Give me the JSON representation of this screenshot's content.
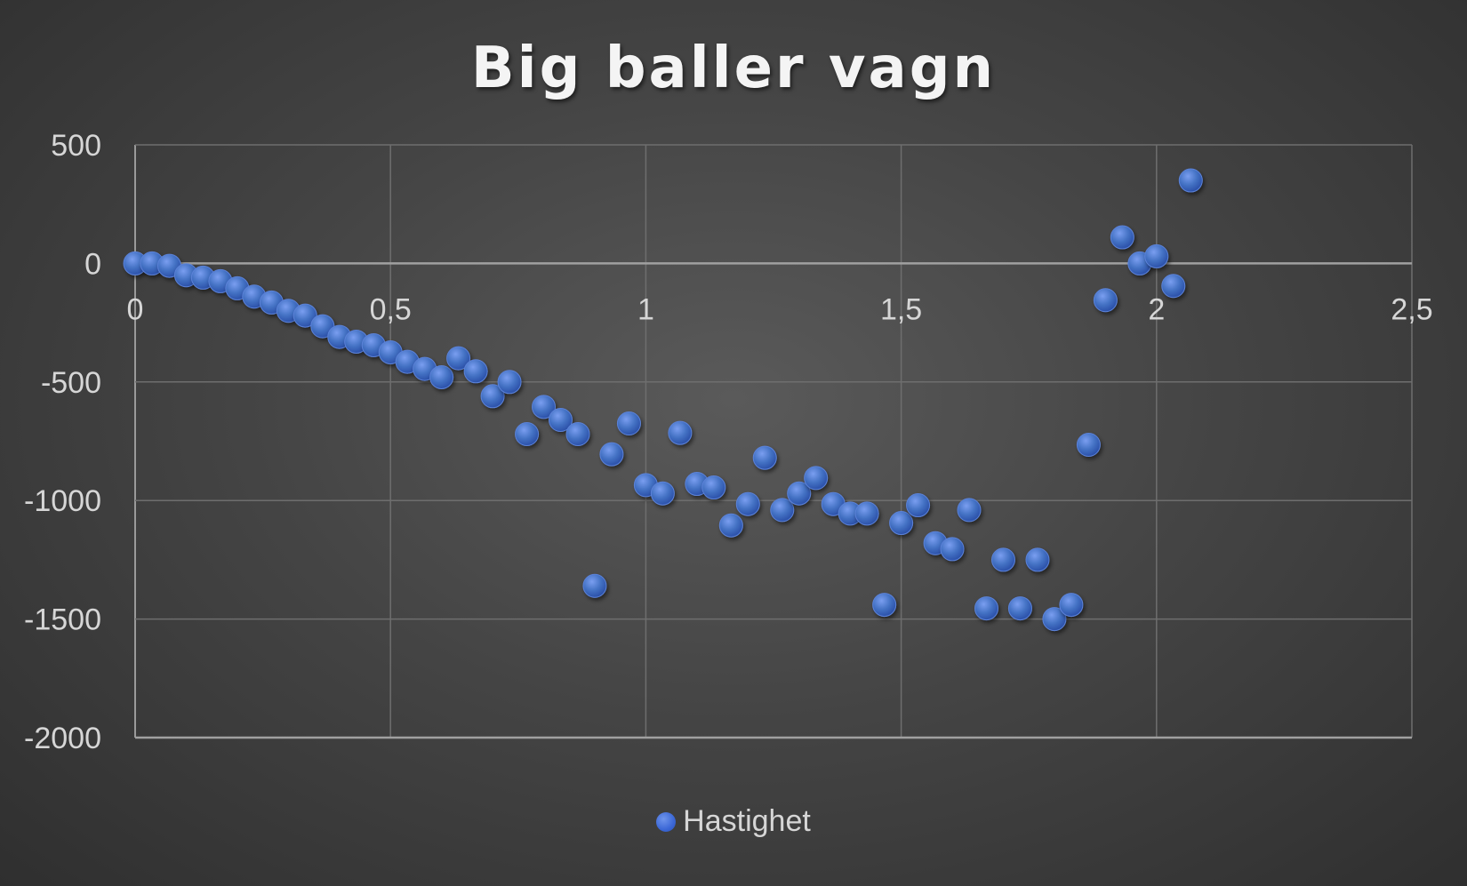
{
  "chart_data": {
    "type": "scatter",
    "title": "Big baller vagn",
    "xlim": [
      0,
      2.5
    ],
    "ylim": [
      -2000,
      500
    ],
    "x_ticks": [
      0,
      0.5,
      1,
      1.5,
      2,
      2.5
    ],
    "x_tick_labels": [
      "0",
      "0,5",
      "1",
      "1,5",
      "2",
      "2,5"
    ],
    "y_ticks": [
      500,
      0,
      -500,
      -1000,
      -1500,
      -2000
    ],
    "y_tick_labels": [
      "500",
      "0",
      "-500",
      "-1000",
      "-1500",
      "-2000"
    ],
    "grid": true,
    "legend_position": "bottom",
    "marker_color": "#4472C4",
    "series": [
      {
        "name": "Hastighet",
        "points": [
          [
            0.0,
            0
          ],
          [
            0.033,
            0
          ],
          [
            0.067,
            -10
          ],
          [
            0.1,
            -50
          ],
          [
            0.133,
            -60
          ],
          [
            0.167,
            -75
          ],
          [
            0.2,
            -105
          ],
          [
            0.233,
            -140
          ],
          [
            0.267,
            -165
          ],
          [
            0.3,
            -200
          ],
          [
            0.333,
            -220
          ],
          [
            0.367,
            -265
          ],
          [
            0.4,
            -310
          ],
          [
            0.433,
            -330
          ],
          [
            0.467,
            -345
          ],
          [
            0.5,
            -375
          ],
          [
            0.533,
            -415
          ],
          [
            0.567,
            -445
          ],
          [
            0.6,
            -480
          ],
          [
            0.633,
            -400
          ],
          [
            0.667,
            -455
          ],
          [
            0.7,
            -560
          ],
          [
            0.733,
            -500
          ],
          [
            0.767,
            -720
          ],
          [
            0.8,
            -605
          ],
          [
            0.833,
            -660
          ],
          [
            0.867,
            -720
          ],
          [
            0.9,
            -1360
          ],
          [
            0.933,
            -805
          ],
          [
            0.967,
            -675
          ],
          [
            1.0,
            -935
          ],
          [
            1.033,
            -970
          ],
          [
            1.067,
            -715
          ],
          [
            1.1,
            -930
          ],
          [
            1.133,
            -945
          ],
          [
            1.167,
            -1105
          ],
          [
            1.2,
            -1015
          ],
          [
            1.233,
            -820
          ],
          [
            1.267,
            -1040
          ],
          [
            1.3,
            -970
          ],
          [
            1.333,
            -905
          ],
          [
            1.367,
            -1015
          ],
          [
            1.4,
            -1055
          ],
          [
            1.433,
            -1055
          ],
          [
            1.467,
            -1440
          ],
          [
            1.5,
            -1095
          ],
          [
            1.533,
            -1020
          ],
          [
            1.567,
            -1180
          ],
          [
            1.6,
            -1205
          ],
          [
            1.633,
            -1040
          ],
          [
            1.667,
            -1455
          ],
          [
            1.7,
            -1250
          ],
          [
            1.733,
            -1455
          ],
          [
            1.767,
            -1250
          ],
          [
            1.8,
            -1500
          ],
          [
            1.833,
            -1440
          ],
          [
            1.867,
            -765
          ],
          [
            1.9,
            -155
          ],
          [
            1.933,
            110
          ],
          [
            1.967,
            0
          ],
          [
            2.0,
            30
          ],
          [
            2.033,
            -95
          ],
          [
            2.067,
            350
          ]
        ]
      }
    ]
  }
}
